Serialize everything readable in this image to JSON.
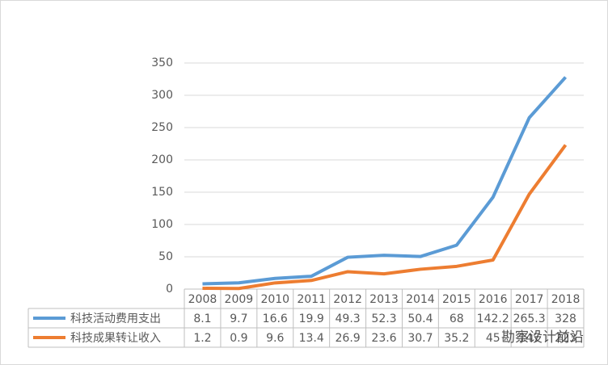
{
  "chart_data": {
    "type": "line",
    "categories": [
      "2008",
      "2009",
      "2010",
      "2011",
      "2012",
      "2013",
      "2014",
      "2015",
      "2016",
      "2017",
      "2018"
    ],
    "series": [
      {
        "name": "科技活动费用支出",
        "color": "#5b9bd5",
        "values": [
          8.1,
          9.7,
          16.6,
          19.9,
          49.3,
          52.3,
          50.4,
          68,
          142.2,
          265.3,
          328
        ]
      },
      {
        "name": "科技成果转让收入",
        "color": "#ed7d31",
        "values": [
          1.2,
          0.9,
          9.6,
          13.4,
          26.9,
          23.6,
          30.7,
          35.2,
          45,
          147,
          223
        ]
      }
    ],
    "ylim": [
      0,
      350
    ],
    "yticks": [
      0,
      50,
      100,
      150,
      200,
      250,
      300,
      350
    ],
    "grid": true,
    "data_table": true,
    "watermark": "勘察设计前沿"
  }
}
